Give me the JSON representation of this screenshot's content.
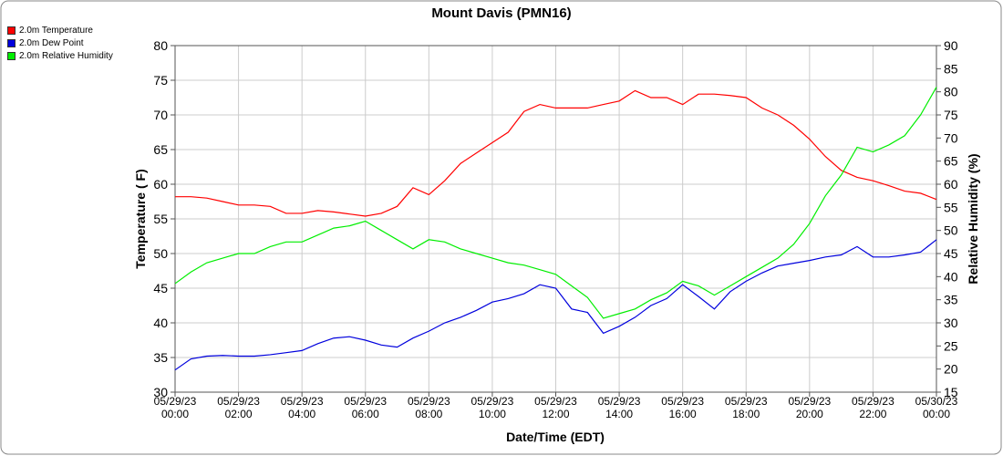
{
  "chart_data": {
    "type": "line",
    "title": "Mount Davis (PMN16)",
    "x_label": "Date/Time (EDT)",
    "y_label": "Temperature ( F)",
    "y2_label": "Relative Humidity (%)",
    "legend": "top-left",
    "grid": true,
    "x": [
      "2023-05-29T00:00",
      "2023-05-29T00:30",
      "2023-05-29T01:00",
      "2023-05-29T01:30",
      "2023-05-29T02:00",
      "2023-05-29T02:30",
      "2023-05-29T03:00",
      "2023-05-29T03:30",
      "2023-05-29T04:00",
      "2023-05-29T04:30",
      "2023-05-29T05:00",
      "2023-05-29T05:30",
      "2023-05-29T06:00",
      "2023-05-29T06:30",
      "2023-05-29T07:00",
      "2023-05-29T07:30",
      "2023-05-29T08:00",
      "2023-05-29T08:30",
      "2023-05-29T09:00",
      "2023-05-29T09:30",
      "2023-05-29T10:00",
      "2023-05-29T10:30",
      "2023-05-29T11:00",
      "2023-05-29T11:30",
      "2023-05-29T12:00",
      "2023-05-29T12:30",
      "2023-05-29T13:00",
      "2023-05-29T13:30",
      "2023-05-29T14:00",
      "2023-05-29T14:30",
      "2023-05-29T15:00",
      "2023-05-29T15:30",
      "2023-05-29T16:00",
      "2023-05-29T16:30",
      "2023-05-29T17:00",
      "2023-05-29T17:30",
      "2023-05-29T18:00",
      "2023-05-29T18:30",
      "2023-05-29T19:00",
      "2023-05-29T19:30",
      "2023-05-29T20:00",
      "2023-05-29T20:30",
      "2023-05-29T21:00",
      "2023-05-29T21:30",
      "2023-05-29T22:00",
      "2023-05-29T22:30",
      "2023-05-29T23:00",
      "2023-05-29T23:30",
      "2023-05-30T00:00"
    ],
    "xlim": [
      "2023-05-29T00:00",
      "2023-05-30T00:00"
    ],
    "xticks": [
      {
        "value": "2023-05-29T00:00",
        "label": "05/29/23 00:00"
      },
      {
        "value": "2023-05-29T02:00",
        "label": "05/29/23 02:00"
      },
      {
        "value": "2023-05-29T04:00",
        "label": "05/29/23 04:00"
      },
      {
        "value": "2023-05-29T06:00",
        "label": "05/29/23 06:00"
      },
      {
        "value": "2023-05-29T08:00",
        "label": "05/29/23 08:00"
      },
      {
        "value": "2023-05-29T10:00",
        "label": "05/29/23 10:00"
      },
      {
        "value": "2023-05-29T12:00",
        "label": "05/29/23 12:00"
      },
      {
        "value": "2023-05-29T14:00",
        "label": "05/29/23 14:00"
      },
      {
        "value": "2023-05-29T16:00",
        "label": "05/29/23 16:00"
      },
      {
        "value": "2023-05-29T18:00",
        "label": "05/29/23 18:00"
      },
      {
        "value": "2023-05-29T20:00",
        "label": "05/29/23 20:00"
      },
      {
        "value": "2023-05-29T22:00",
        "label": "05/29/23 22:00"
      },
      {
        "value": "2023-05-30T00:00",
        "label": "05/30/23 00:00"
      }
    ],
    "ylim": [
      30,
      80
    ],
    "yticks": [
      30,
      35,
      40,
      45,
      50,
      55,
      60,
      65,
      70,
      75,
      80
    ],
    "y2lim": [
      15,
      90
    ],
    "y2ticks": [
      15,
      20,
      25,
      30,
      35,
      40,
      45,
      50,
      55,
      60,
      65,
      70,
      75,
      80,
      85,
      90
    ],
    "series": [
      {
        "name": "2.0m Temperature",
        "color": "#ff0000",
        "values": [
          58.2,
          58.2,
          58.0,
          57.5,
          57.0,
          57.0,
          56.8,
          55.8,
          55.8,
          56.2,
          56.0,
          55.7,
          55.4,
          55.8,
          56.8,
          59.5,
          58.5,
          60.5,
          63.0,
          64.5,
          66.0,
          67.5,
          70.5,
          71.5,
          71.0,
          71.0,
          71.0,
          71.5,
          72.0,
          73.5,
          72.5,
          72.5,
          71.5,
          73.0,
          73.0,
          72.8,
          72.5,
          71.0,
          70.0,
          68.5,
          66.5,
          64.0,
          62.0,
          61.0,
          60.5,
          59.8,
          59.0,
          58.7,
          57.8
        ]
      },
      {
        "name": "2.0m Dew Point",
        "color": "#0000dd",
        "values": [
          33.2,
          34.8,
          35.2,
          35.3,
          35.2,
          35.2,
          35.4,
          35.7,
          36.0,
          37.0,
          37.8,
          38.0,
          37.5,
          36.8,
          36.5,
          37.8,
          38.8,
          40.0,
          40.8,
          41.8,
          43.0,
          43.5,
          44.2,
          45.5,
          45.0,
          42.0,
          41.5,
          38.5,
          39.5,
          40.8,
          42.5,
          43.5,
          45.5,
          43.8,
          42.0,
          44.5,
          46.0,
          47.2,
          48.2,
          48.6,
          49.0,
          49.5,
          49.8,
          51.0,
          49.5,
          49.5,
          49.8,
          50.2,
          52.0
        ]
      },
      {
        "name": "2.0m Relative Humidity",
        "color": "#00ee00",
        "axis": "y2",
        "values": [
          38.5,
          41,
          43,
          44,
          45,
          45,
          46.5,
          47.5,
          47.5,
          49,
          50.5,
          51,
          52,
          50,
          48,
          46,
          48,
          47.5,
          46,
          45,
          44,
          43,
          42.5,
          41.5,
          40.5,
          38,
          35.5,
          31,
          32,
          33,
          35,
          36.5,
          39,
          38,
          36,
          38,
          40,
          42,
          44,
          47,
          51.5,
          57.5,
          62,
          68,
          67,
          68.5,
          70.5,
          75,
          81
        ]
      }
    ]
  }
}
